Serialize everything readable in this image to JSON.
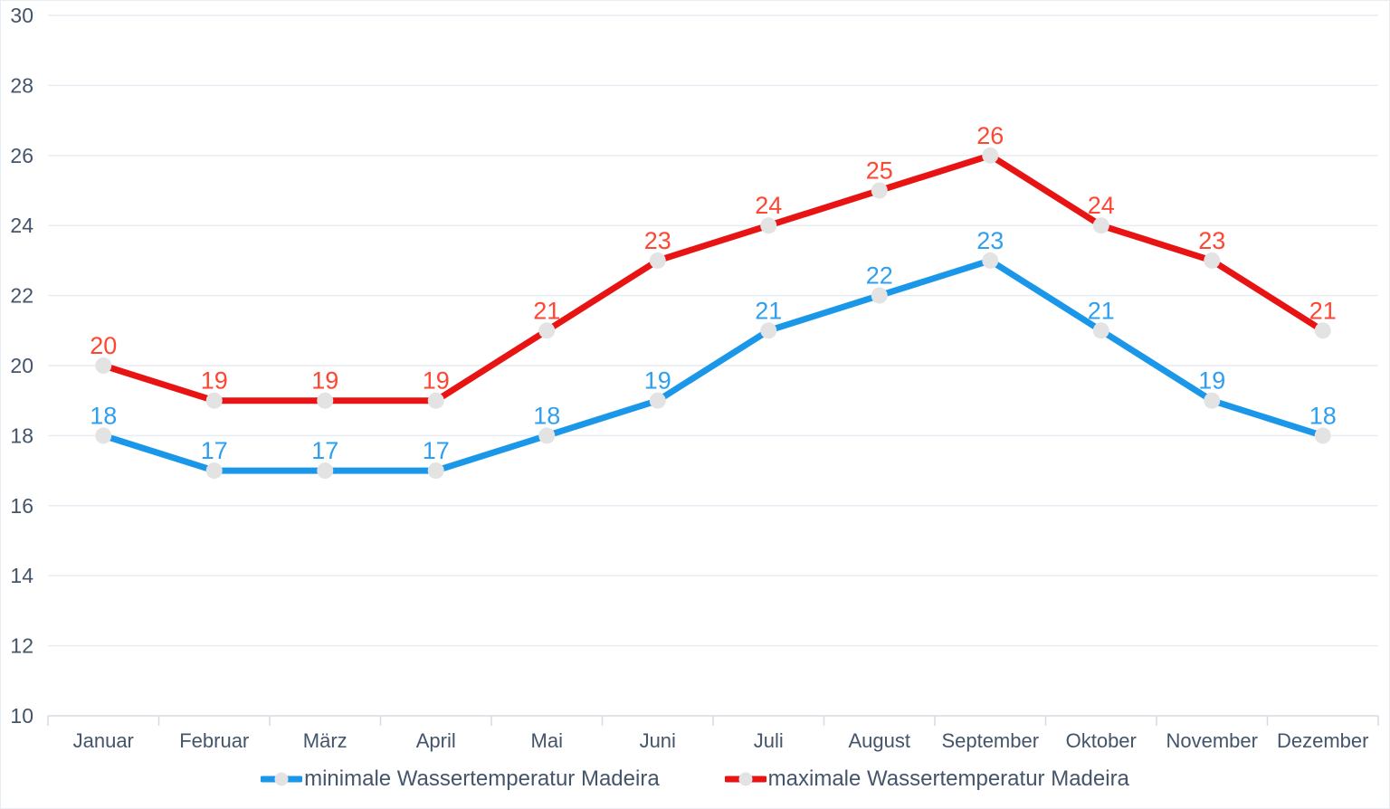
{
  "chart_data": {
    "type": "line",
    "categories": [
      "Januar",
      "Februar",
      "März",
      "April",
      "Mai",
      "Juni",
      "Juli",
      "August",
      "September",
      "Oktober",
      "November",
      "Dezember"
    ],
    "series": [
      {
        "name": "minimale Wassertemperatur Madeira",
        "values": [
          18,
          17,
          17,
          17,
          18,
          19,
          21,
          22,
          23,
          21,
          19,
          18
        ],
        "color": "#1b97e9",
        "label_color": "#2e9ff0"
      },
      {
        "name": "maximale Wassertemperatur Madeira",
        "values": [
          20,
          19,
          19,
          19,
          21,
          23,
          24,
          25,
          26,
          24,
          23,
          21
        ],
        "color": "#e81414",
        "label_color": "#ff4633"
      }
    ],
    "ylim": [
      10,
      30
    ],
    "ytick_step": 2,
    "ytick_labels": [
      "10",
      "12",
      "14",
      "16",
      "18",
      "20",
      "22",
      "24",
      "26",
      "28",
      "30"
    ],
    "grid": true,
    "legend_position": "bottom",
    "data_labels_shown": true,
    "marker_color": "#e3e3e3",
    "axis_text_color": "#44546a",
    "gridline_color": "#e8ecf3",
    "axis_line_color": "#d6dbe2",
    "background_color": "#ffffff"
  }
}
